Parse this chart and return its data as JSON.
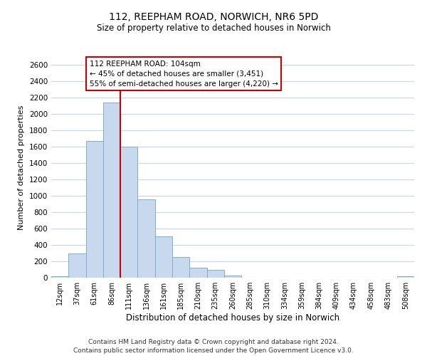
{
  "title_line1": "112, REEPHAM ROAD, NORWICH, NR6 5PD",
  "title_line2": "Size of property relative to detached houses in Norwich",
  "xlabel": "Distribution of detached houses by size in Norwich",
  "ylabel": "Number of detached properties",
  "bin_labels": [
    "12sqm",
    "37sqm",
    "61sqm",
    "86sqm",
    "111sqm",
    "136sqm",
    "161sqm",
    "185sqm",
    "210sqm",
    "235sqm",
    "260sqm",
    "285sqm",
    "310sqm",
    "334sqm",
    "359sqm",
    "384sqm",
    "409sqm",
    "434sqm",
    "458sqm",
    "483sqm",
    "508sqm"
  ],
  "bar_heights": [
    20,
    295,
    1670,
    2140,
    1600,
    960,
    505,
    250,
    120,
    95,
    30,
    0,
    0,
    0,
    0,
    0,
    0,
    0,
    0,
    0,
    20
  ],
  "bar_color": "#c8d9ed",
  "bar_edge_color": "#7bafd4",
  "vline_x": 4,
  "vline_color": "#cc0000",
  "annotation_title": "112 REEPHAM ROAD: 104sqm",
  "annotation_line2": "← 45% of detached houses are smaller (3,451)",
  "annotation_line3": "55% of semi-detached houses are larger (4,220) →",
  "annotation_box_color": "#ffffff",
  "annotation_box_edge": "#cc0000",
  "ylim": [
    0,
    2700
  ],
  "yticks": [
    0,
    200,
    400,
    600,
    800,
    1000,
    1200,
    1400,
    1600,
    1800,
    2000,
    2200,
    2400,
    2600
  ],
  "footer_line1": "Contains HM Land Registry data © Crown copyright and database right 2024.",
  "footer_line2": "Contains public sector information licensed under the Open Government Licence v3.0.",
  "background_color": "#ffffff",
  "grid_color": "#c8d4e8"
}
